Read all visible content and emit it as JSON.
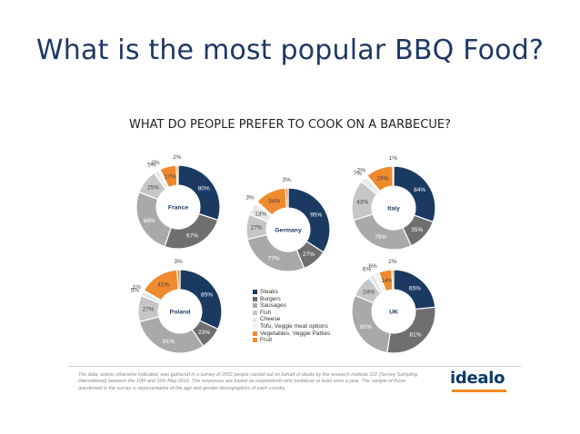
{
  "slide": {
    "title": "What is the most popular BBQ Food?"
  },
  "chart_data": {
    "type": "pie",
    "title": "WHAT DO PEOPLE PREFER TO COOK ON A BARBECUE?",
    "categories": [
      "Steaks",
      "Burgers",
      "Sausages",
      "Fish",
      "Cheese",
      "Tofu, Veggie meat options",
      "Vegetables, Veggie Patties",
      "Fruit"
    ],
    "colors": [
      "#1b3a62",
      "#6f6f6f",
      "#a9a9a9",
      "#c6c6c6",
      "#e8e8e8",
      "#f2f2f2",
      "#ef8a2e",
      "#ef8a2e"
    ],
    "legend_position": "center-bottom",
    "series": [
      {
        "name": "France",
        "values": [
          80,
          67,
          68,
          25,
          5,
          2,
          17,
          2
        ]
      },
      {
        "name": "Germany",
        "values": [
          95,
          27,
          77,
          27,
          13,
          3,
          34,
          3
        ]
      },
      {
        "name": "Italy",
        "values": [
          84,
          35,
          75,
          43,
          7,
          2,
          29,
          1
        ]
      },
      {
        "name": "Poland",
        "values": [
          85,
          23,
          81,
          27,
          5,
          1,
          41,
          3
        ]
      },
      {
        "name": "UK",
        "values": [
          65,
          81,
          80,
          24,
          6,
          6,
          14,
          2
        ]
      }
    ]
  },
  "footer": {
    "note": "The data, unless otherwise indicated, was gathered in a survey of 2552 people carried out on behalf of idealo by the research institute SSI (Survey Sampling International) between the 10th and 16th May 2016. The responses are based on respondents who barbecue at least once a year. The sample of those questioned in the survey is representative of the age and gender demographics of each country.",
    "logo": "idealo"
  }
}
